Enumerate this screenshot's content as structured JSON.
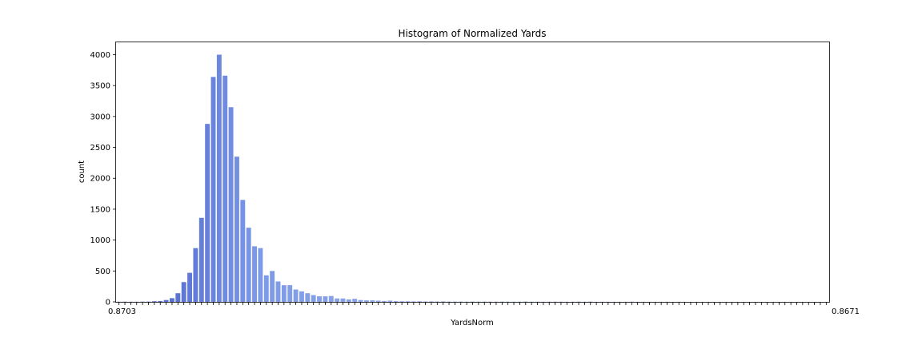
{
  "chart_data": {
    "type": "bar",
    "title": "Histogram of Normalized Yards",
    "xlabel": "YardsNorm",
    "ylabel": "count",
    "ylim": [
      0,
      4200
    ],
    "yticks": [
      0,
      500,
      1000,
      1500,
      2000,
      2500,
      3000,
      3500,
      4000
    ],
    "x_tick_labels_shown": [
      "0.8703",
      "0.8671"
    ],
    "grid": false,
    "legend": false,
    "palette": {
      "start": "#4358c4",
      "mid": "#7d9ae8",
      "end": "#c6d0ee",
      "tail_accent": "#e6b8a0"
    },
    "values": [
      2,
      3,
      2,
      2,
      3,
      4,
      10,
      14,
      30,
      60,
      140,
      320,
      470,
      870,
      1360,
      2880,
      3640,
      4000,
      3660,
      3150,
      2350,
      1650,
      1200,
      900,
      870,
      430,
      500,
      330,
      270,
      270,
      200,
      170,
      140,
      110,
      90,
      90,
      95,
      55,
      55,
      40,
      50,
      30,
      25,
      25,
      20,
      15,
      20,
      12,
      10,
      10,
      8,
      10,
      6,
      8,
      6,
      8,
      5,
      5,
      5,
      4,
      6,
      4,
      5,
      4,
      3,
      5,
      4,
      3,
      4,
      6,
      3,
      4,
      3,
      3,
      3,
      3,
      2,
      3,
      5,
      3,
      6,
      2,
      3,
      2,
      2,
      2,
      2,
      5,
      2,
      2,
      2,
      2,
      2,
      2,
      1,
      2,
      1,
      1,
      1,
      1,
      1,
      1,
      1,
      1,
      1,
      1,
      1,
      1,
      1,
      1,
      1,
      1,
      1,
      1,
      1,
      1,
      1,
      1,
      1,
      1,
      1
    ]
  }
}
